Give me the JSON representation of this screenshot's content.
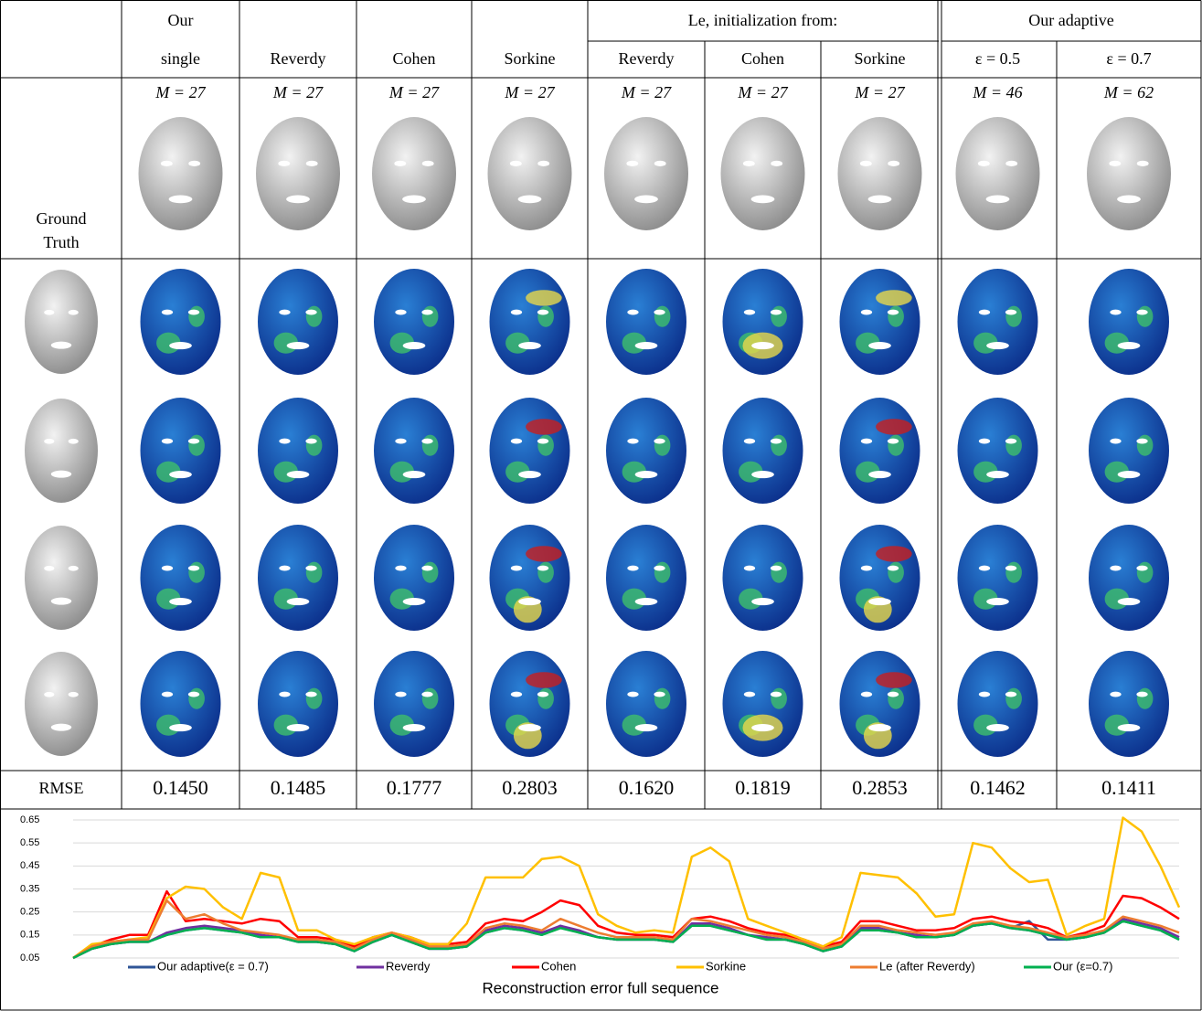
{
  "table": {
    "header": {
      "our": "Our",
      "le": "Le, initialization from:",
      "adaptive": "Our adaptive"
    },
    "columns": [
      "single",
      "Reverdy",
      "Cohen",
      "Sorkine",
      "Reverdy",
      "Cohen",
      "Sorkine",
      "ε = 0.5",
      "ε = 0.7"
    ],
    "m_values": [
      "M = 27",
      "M = 27",
      "M = 27",
      "M = 27",
      "M = 27",
      "M = 27",
      "M = 27",
      "M = 46",
      "M = 62"
    ],
    "ground_truth": [
      "Ground",
      "Truth"
    ],
    "rmse_label": "RMSE",
    "rmse": [
      "0.1450",
      "0.1485",
      "0.1777",
      "0.2803",
      "0.1620",
      "0.1819",
      "0.2853",
      "0.1462",
      "0.1411"
    ]
  },
  "chart_data": {
    "type": "line",
    "title": "Reconstruction error full sequence",
    "ylim": [
      0.05,
      0.65
    ],
    "yticks": [
      0.05,
      0.15,
      0.25,
      0.35,
      0.45,
      0.55,
      0.65
    ],
    "grid": true,
    "legend": "bottom",
    "series": [
      {
        "name": "Our adaptive(ε = 0.7)",
        "color": "#2f5597",
        "values": [
          0.05,
          0.09,
          0.11,
          0.12,
          0.12,
          0.15,
          0.17,
          0.18,
          0.17,
          0.16,
          0.14,
          0.14,
          0.12,
          0.12,
          0.11,
          0.08,
          0.12,
          0.15,
          0.12,
          0.09,
          0.09,
          0.1,
          0.16,
          0.18,
          0.17,
          0.15,
          0.19,
          0.16,
          0.14,
          0.13,
          0.13,
          0.13,
          0.12,
          0.19,
          0.19,
          0.17,
          0.15,
          0.13,
          0.13,
          0.11,
          0.08,
          0.1,
          0.17,
          0.17,
          0.16,
          0.14,
          0.14,
          0.15,
          0.19,
          0.2,
          0.18,
          0.21,
          0.13,
          0.13,
          0.14,
          0.16,
          0.21,
          0.19,
          0.17,
          0.13
        ]
      },
      {
        "name": "Reverdy",
        "color": "#7030a0",
        "values": [
          0.05,
          0.09,
          0.11,
          0.12,
          0.12,
          0.16,
          0.18,
          0.19,
          0.18,
          0.17,
          0.15,
          0.14,
          0.12,
          0.12,
          0.11,
          0.08,
          0.12,
          0.15,
          0.12,
          0.09,
          0.09,
          0.1,
          0.17,
          0.19,
          0.18,
          0.16,
          0.19,
          0.17,
          0.14,
          0.13,
          0.13,
          0.13,
          0.12,
          0.2,
          0.2,
          0.18,
          0.15,
          0.14,
          0.13,
          0.11,
          0.08,
          0.1,
          0.18,
          0.18,
          0.16,
          0.15,
          0.14,
          0.15,
          0.19,
          0.2,
          0.18,
          0.17,
          0.15,
          0.13,
          0.14,
          0.16,
          0.22,
          0.2,
          0.18,
          0.14
        ]
      },
      {
        "name": "Cohen",
        "color": "#ff0000",
        "values": [
          0.05,
          0.1,
          0.13,
          0.15,
          0.15,
          0.34,
          0.21,
          0.22,
          0.21,
          0.2,
          0.22,
          0.21,
          0.14,
          0.14,
          0.13,
          0.1,
          0.14,
          0.16,
          0.14,
          0.11,
          0.11,
          0.12,
          0.2,
          0.22,
          0.21,
          0.25,
          0.3,
          0.28,
          0.19,
          0.16,
          0.15,
          0.15,
          0.14,
          0.22,
          0.23,
          0.21,
          0.18,
          0.16,
          0.15,
          0.13,
          0.1,
          0.12,
          0.21,
          0.21,
          0.19,
          0.17,
          0.17,
          0.18,
          0.22,
          0.23,
          0.21,
          0.2,
          0.18,
          0.14,
          0.16,
          0.19,
          0.32,
          0.31,
          0.27,
          0.22
        ]
      },
      {
        "name": "Sorkine",
        "color": "#ffc000",
        "values": [
          0.05,
          0.11,
          0.12,
          0.13,
          0.14,
          0.31,
          0.36,
          0.35,
          0.27,
          0.22,
          0.42,
          0.4,
          0.17,
          0.17,
          0.13,
          0.11,
          0.14,
          0.16,
          0.14,
          0.11,
          0.11,
          0.2,
          0.4,
          0.4,
          0.4,
          0.48,
          0.49,
          0.45,
          0.24,
          0.19,
          0.16,
          0.17,
          0.16,
          0.49,
          0.53,
          0.47,
          0.22,
          0.19,
          0.16,
          0.13,
          0.1,
          0.14,
          0.42,
          0.41,
          0.4,
          0.33,
          0.23,
          0.24,
          0.55,
          0.53,
          0.44,
          0.38,
          0.39,
          0.15,
          0.19,
          0.22,
          0.66,
          0.6,
          0.45,
          0.27
        ]
      },
      {
        "name": "Le (after Reverdy)",
        "color": "#ed7d31",
        "values": [
          0.05,
          0.1,
          0.12,
          0.13,
          0.13,
          0.3,
          0.22,
          0.24,
          0.2,
          0.17,
          0.16,
          0.15,
          0.13,
          0.13,
          0.12,
          0.09,
          0.13,
          0.16,
          0.13,
          0.1,
          0.1,
          0.11,
          0.18,
          0.2,
          0.19,
          0.17,
          0.22,
          0.19,
          0.16,
          0.14,
          0.14,
          0.14,
          0.13,
          0.22,
          0.21,
          0.19,
          0.17,
          0.15,
          0.14,
          0.12,
          0.09,
          0.11,
          0.19,
          0.19,
          0.17,
          0.16,
          0.15,
          0.16,
          0.2,
          0.21,
          0.19,
          0.18,
          0.16,
          0.14,
          0.15,
          0.17,
          0.23,
          0.21,
          0.19,
          0.16
        ]
      },
      {
        "name": "Our (ε=0.7)",
        "color": "#00b050",
        "values": [
          0.05,
          0.09,
          0.11,
          0.12,
          0.12,
          0.15,
          0.17,
          0.18,
          0.17,
          0.16,
          0.14,
          0.14,
          0.12,
          0.12,
          0.11,
          0.08,
          0.12,
          0.15,
          0.12,
          0.09,
          0.09,
          0.1,
          0.16,
          0.18,
          0.17,
          0.15,
          0.18,
          0.16,
          0.14,
          0.13,
          0.13,
          0.13,
          0.12,
          0.19,
          0.19,
          0.17,
          0.15,
          0.13,
          0.13,
          0.11,
          0.08,
          0.1,
          0.17,
          0.17,
          0.16,
          0.14,
          0.14,
          0.15,
          0.19,
          0.2,
          0.18,
          0.17,
          0.15,
          0.13,
          0.14,
          0.16,
          0.21,
          0.19,
          0.17,
          0.13
        ]
      }
    ]
  }
}
